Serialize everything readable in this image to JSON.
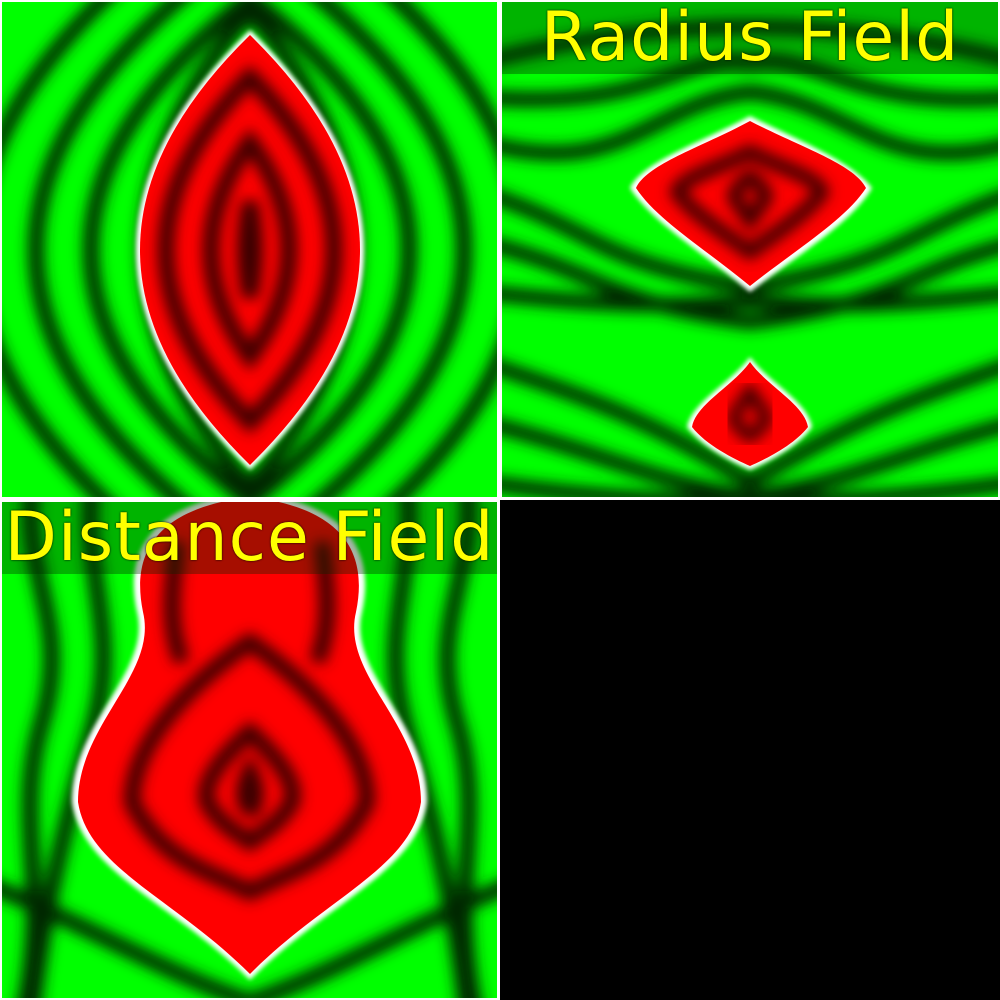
{
  "panels": {
    "radius_field": {
      "title": "Radius Field"
    },
    "distance_field": {
      "title": "Distance Field"
    }
  },
  "colors": {
    "inside": "#ff0000",
    "inside_dark": "#300000",
    "outside": "#00ff00",
    "outside_dark": "#002800",
    "edge": "#ffffff",
    "title": "#ffff00",
    "background": "#000000",
    "divider": "#ffffff"
  }
}
